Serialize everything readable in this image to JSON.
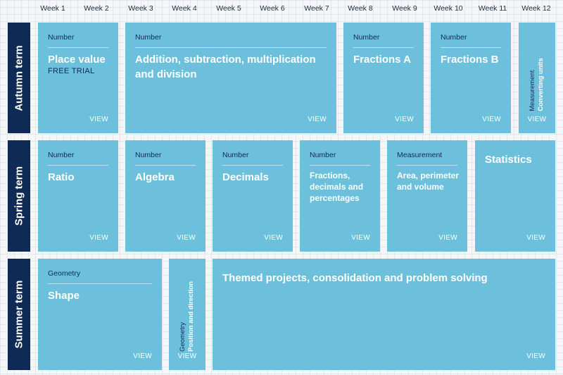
{
  "weeks": [
    "Week 1",
    "Week 2",
    "Week 3",
    "Week 4",
    "Week 5",
    "Week 6",
    "Week 7",
    "Week 8",
    "Week 9",
    "Week 10",
    "Week 11",
    "Week 12"
  ],
  "terms": {
    "autumn": "Autumn term",
    "spring": "Spring term",
    "summer": "Summer term"
  },
  "view_label": "VIEW",
  "autumn": {
    "place_value": {
      "category": "Number",
      "title": "Place value",
      "badge": "FREE TRIAL"
    },
    "four_ops": {
      "category": "Number",
      "title": "Addition, subtraction, multiplication and division"
    },
    "fractions_a": {
      "category": "Number",
      "title": "Fractions A"
    },
    "fractions_b": {
      "category": "Number",
      "title": "Fractions B"
    },
    "converting_units": {
      "category": "Measurement",
      "title": "Converting units"
    }
  },
  "spring": {
    "ratio": {
      "category": "Number",
      "title": "Ratio"
    },
    "algebra": {
      "category": "Number",
      "title": "Algebra"
    },
    "decimals": {
      "category": "Number",
      "title": "Decimals"
    },
    "fdp": {
      "category": "Number",
      "title": "Fractions, decimals and percentages"
    },
    "area": {
      "category": "Measurement",
      "title": "Area, perimeter and volume"
    },
    "statistics": {
      "title": "Statistics"
    }
  },
  "summer": {
    "shape": {
      "category": "Geometry",
      "title": "Shape"
    },
    "position": {
      "category": "Geometry",
      "title": "Position and direction"
    },
    "themed": {
      "title": "Themed projects, consolidation and problem solving"
    }
  }
}
